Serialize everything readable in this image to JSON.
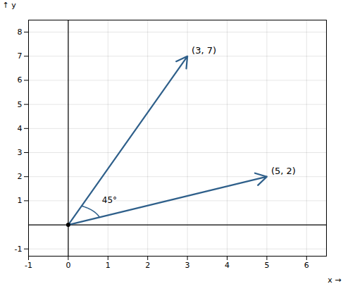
{
  "chart_data": {
    "type": "vector",
    "x": [
      3,
      5
    ],
    "values": [
      7,
      2
    ],
    "value_labels": [
      "(3, 7)",
      "(5, 2)"
    ],
    "data_labels": true,
    "annotations": [
      "45°"
    ],
    "xlabel": "x",
    "ylabel": "y",
    "xlim": [
      -1,
      6.5
    ],
    "ylim": [
      -1.3,
      8.5
    ],
    "xticks": [
      -1,
      0,
      1,
      2,
      3,
      4,
      5,
      6
    ],
    "yticks": [
      -1,
      1,
      2,
      3,
      4,
      5,
      6,
      7,
      8
    ],
    "grid": true,
    "color": "#2e5f8a"
  }
}
